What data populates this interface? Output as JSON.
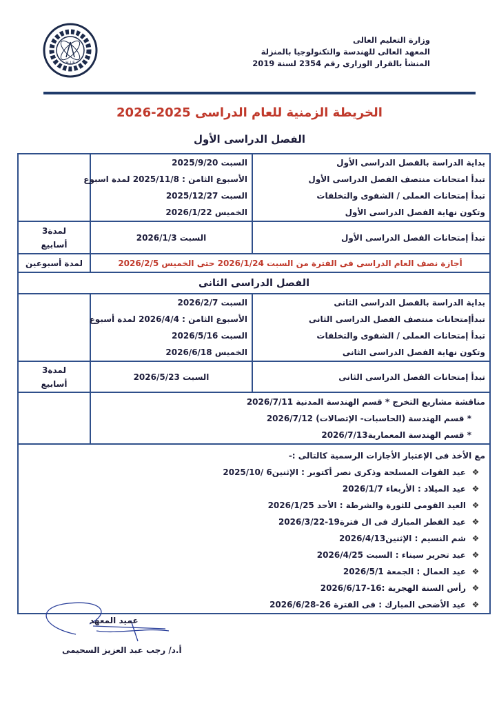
{
  "header": {
    "lines": [
      "وزارة التعليم العالى",
      "المعهد العالى للهندسة والتكنولوجيا بالمنزلة",
      "المنشأ بالقرار الوزارى رقم 2354 لسنة 2019"
    ],
    "logo_text": "H.I.E"
  },
  "title": "الخريطة الزمنية للعام الدراسى 2025-2026",
  "semester1": {
    "heading": "الفصل الدراسى  الأول",
    "events": [
      {
        "label": "بداية الدراسة بالفصل الدراسى الأول",
        "date": "السبت 2025/9/20"
      },
      {
        "label": "تبدأ امتحانات منتصف الفصل الدراسى الأول",
        "date": "الأسبوع الثامن : 2025/11/8 لمدة اسبوع"
      },
      {
        "label": "تبدأ إمتحانات العملى / الشفوى والتخلفات",
        "date": "السبت 2025/12/27"
      },
      {
        "label": "وتكون نهاية الفصل الدراسى الأول",
        "date": "الخميس 2026/1/22"
      }
    ],
    "exams": {
      "label": "تبدأ إمتحانات الفصل الدراسى الأول",
      "date": "السبت 2026/1/3",
      "duration_line1": "لمدة3",
      "duration_line2": "أسابيع"
    },
    "break": {
      "text": "أجازة نصف العام الدراسى فى الفترة من السبت 2026/1/24 حتى الخميس 2026/2/5",
      "duration": "لمدة أسبوعين"
    }
  },
  "semester2": {
    "heading": "الفصل الدراسى الثانى",
    "events": [
      {
        "label": "بداية الدراسة بالفصل الدراسى الثانى",
        "date": "السبت 2026/2/7"
      },
      {
        "label": "تبدأإمتحانات منتصف الفصل الدراسى الثانى",
        "date": "الأسبوع الثامن : 2026/4/4 لمدة أسبوع"
      },
      {
        "label": "تبدأ إمتحانات العملى / الشفوى والتخلفات",
        "date": "السبت 2026/5/16"
      },
      {
        "label": "وتكون نهاية الفصل الدراسى الثانى",
        "date": "الخميس  2026/6/18"
      }
    ],
    "exams": {
      "label": "تبدأ إمتحانات الفصل الدراسى الثانى",
      "date": "السبت  2026/5/23",
      "duration_line1": "لمدة3",
      "duration_line2": "أسابيع"
    }
  },
  "projects": [
    "مناقشة مشاريع التخرج  *  قسم الهندسة المدنية 2026/7/11",
    "* قسم الهندسة (الحاسبات- الإتصالات) 2026/7/12",
    "* قسم الهندسة المعمارية2026/7/13"
  ],
  "holidays": {
    "intro": "مع الأخذ فى الإعتبار الأجازات الرسمية كالتالى :-",
    "bullet_icon": "diamond-bullet",
    "items": [
      "عيد القوات المسلحة وذكرى نصر أكتوبر : الإثنين6 /2025/10",
      "عيد الميلاد : الأربعاء 2026/1/7",
      "العيد القومى للثورة والشرطة : الأحد 2026/1/25",
      "عيد الفطر المبارك فى ال فترة19-2026/3/22",
      "شم النسيم : الإثنين2026/4/13",
      "عيد تحرير سيناء : السبت 2026/4/25",
      "عيد العمال : الجمعة 2026/5/1",
      "رأس السنة الهجرية :16-2026/6/17",
      "عيد الأضحى المبارك : فى الفترة 26-2026/6/28"
    ]
  },
  "signature": {
    "title": "عميد المعهد",
    "name": "أ.د/ رجب عبد العزيز السحيمى"
  },
  "colors": {
    "text": "#1c1c3a",
    "accent_red": "#c0392b",
    "border_blue": "#2f4f8a"
  }
}
